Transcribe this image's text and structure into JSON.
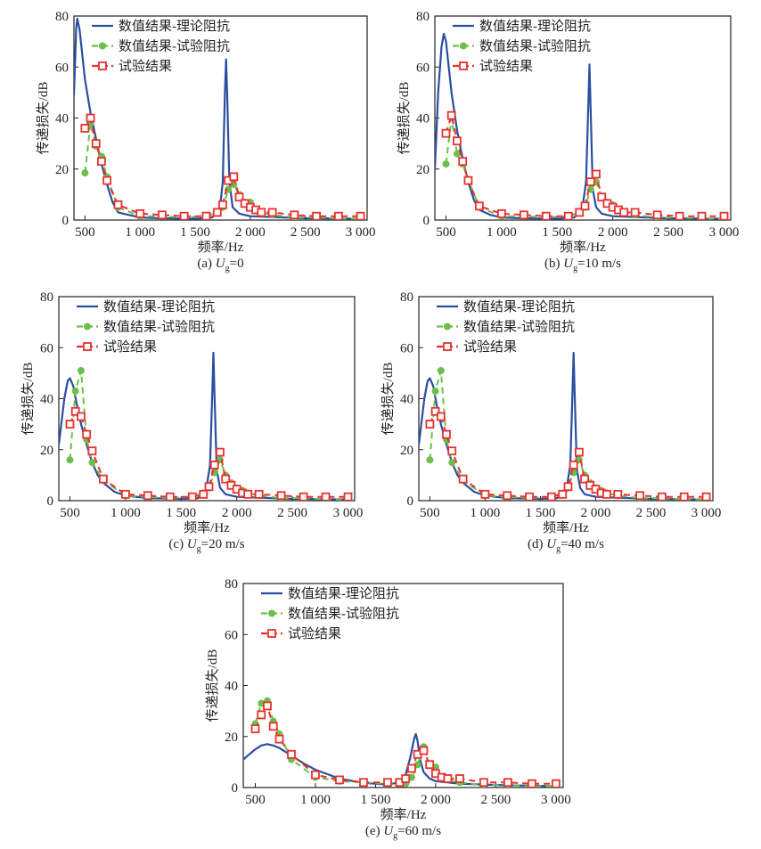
{
  "colors": {
    "theory": "#2a4fa0",
    "numexp": "#6cbf4a",
    "test": "#e8312f",
    "axis": "#231f20"
  },
  "chart_data": [
    {
      "type": "line",
      "id": "a",
      "caption": {
        "prefix": "(a) ",
        "var": "U",
        "sub": "g",
        "suffix": "=0"
      },
      "xlabel": "频率/Hz",
      "ylabel": "传递损失/dB",
      "xlim": [
        400,
        3060
      ],
      "ylim": [
        0,
        80
      ],
      "xticks": [
        500,
        1000,
        1500,
        2000,
        2500,
        3000
      ],
      "xtick_labels": [
        "500",
        "1 000",
        "1 500",
        "2 000",
        "2 500",
        "3 000"
      ],
      "yticks": [
        0,
        20,
        40,
        60,
        80
      ],
      "ytick_labels": [
        "0",
        "20",
        "40",
        "60",
        "80"
      ],
      "legend": [
        "数值结果-理论阻抗",
        "数值结果-试验阻抗",
        "试验结果"
      ],
      "legend_position": "top-left",
      "series": [
        {
          "name": "数值结果-理论阻抗",
          "style": "solid",
          "x": [
            400,
            420,
            430,
            450,
            500,
            550,
            600,
            650,
            700,
            750,
            800,
            900,
            1000,
            1200,
            1500,
            1650,
            1720,
            1750,
            1770,
            1780,
            1790,
            1810,
            1840,
            1900,
            2000,
            2500,
            3000
          ],
          "y": [
            49,
            75,
            79,
            75,
            55,
            42,
            32,
            22,
            14,
            7,
            3,
            2,
            1,
            0.7,
            0.5,
            1,
            3,
            15,
            50,
            63,
            50,
            15,
            5,
            2.5,
            1.5,
            0.7,
            0.5
          ]
        },
        {
          "name": "数值结果-试验阻抗",
          "style": "dashed-circle",
          "x": [
            500,
            550,
            600,
            650,
            700,
            800,
            1000,
            1200,
            1400,
            1600,
            1700,
            1750,
            1800,
            1850,
            1900,
            1950,
            2000,
            2050,
            2100,
            2200,
            2400,
            2600,
            2800,
            3000
          ],
          "y": [
            18.5,
            38,
            29,
            25,
            17,
            5,
            1.5,
            1.5,
            1,
            1.5,
            3,
            5,
            12,
            14,
            10,
            7,
            7,
            4,
            3,
            2,
            1,
            1,
            0.5,
            0.5
          ]
        },
        {
          "name": "试验结果",
          "style": "dashed-square",
          "x": [
            500,
            550,
            600,
            650,
            700,
            800,
            1000,
            1200,
            1400,
            1600,
            1700,
            1750,
            1800,
            1850,
            1900,
            1950,
            2000,
            2050,
            2100,
            2200,
            2400,
            2600,
            2800,
            3000
          ],
          "y": [
            36,
            40,
            30,
            23,
            15.5,
            6,
            2.5,
            2,
            1.5,
            1.5,
            3,
            6,
            15.5,
            17,
            9,
            6.5,
            5,
            4,
            3,
            3,
            2,
            1.5,
            1.5,
            1.5
          ]
        }
      ]
    },
    {
      "type": "line",
      "id": "b",
      "caption": {
        "prefix": "(b) ",
        "var": "U",
        "sub": "g",
        "suffix": "=10 m/s"
      },
      "xlabel": "频率/Hz",
      "ylabel": "传递损失/dB",
      "xlim": [
        400,
        3060
      ],
      "ylim": [
        0,
        80
      ],
      "xticks": [
        500,
        1000,
        1500,
        2000,
        2500,
        3000
      ],
      "xtick_labels": [
        "500",
        "1 000",
        "1 500",
        "2 000",
        "2 500",
        "3 000"
      ],
      "yticks": [
        0,
        20,
        40,
        60,
        80
      ],
      "ytick_labels": [
        "0",
        "20",
        "40",
        "60",
        "80"
      ],
      "legend": [
        "数值结果-理论阻抗",
        "数值结果-试验阻抗",
        "试验结果"
      ],
      "legend_position": "top-left",
      "series": [
        {
          "name": "数值结果-理论阻抗",
          "style": "solid",
          "x": [
            400,
            430,
            460,
            480,
            500,
            550,
            600,
            650,
            700,
            750,
            800,
            900,
            1000,
            1200,
            1500,
            1650,
            1720,
            1760,
            1780,
            1790,
            1800,
            1820,
            1850,
            1900,
            2000,
            2500,
            3000
          ],
          "y": [
            20,
            50,
            68,
            73,
            70,
            50,
            35,
            24,
            15,
            8,
            4,
            2,
            1,
            0.7,
            0.5,
            1,
            3,
            15,
            45,
            61,
            45,
            12,
            5,
            2.5,
            1.5,
            0.7,
            0.5
          ]
        },
        {
          "name": "数值结果-试验阻抗",
          "style": "dashed-circle",
          "x": [
            500,
            550,
            600,
            650,
            700,
            800,
            1000,
            1200,
            1400,
            1600,
            1700,
            1750,
            1800,
            1850,
            1900,
            1950,
            2000,
            2050,
            2100,
            2200,
            2400,
            2600,
            2800,
            3000
          ],
          "y": [
            22,
            40,
            26,
            22,
            16,
            5,
            1.5,
            1.5,
            1,
            1.5,
            3,
            5,
            12,
            15,
            9,
            7,
            6,
            4,
            3,
            2,
            1,
            1,
            0.5,
            0.5
          ]
        },
        {
          "name": "试验结果",
          "style": "dashed-square",
          "x": [
            500,
            550,
            600,
            650,
            700,
            800,
            1000,
            1200,
            1400,
            1600,
            1700,
            1750,
            1800,
            1850,
            1900,
            1950,
            2000,
            2050,
            2100,
            2200,
            2400,
            2600,
            2800,
            3000
          ],
          "y": [
            34,
            41,
            31,
            23,
            15.5,
            5.5,
            2.5,
            2,
            1.5,
            1.5,
            3,
            5.5,
            15,
            18,
            9,
            6.5,
            5,
            4,
            3,
            3,
            2,
            1.5,
            1.5,
            1.5
          ]
        }
      ]
    },
    {
      "type": "line",
      "id": "c",
      "caption": {
        "prefix": "(c) ",
        "var": "U",
        "sub": "g",
        "suffix": "=20 m/s"
      },
      "xlabel": "频率/Hz",
      "ylabel": "传递损失/dB",
      "xlim": [
        400,
        3060
      ],
      "ylim": [
        0,
        80
      ],
      "xticks": [
        500,
        1000,
        1500,
        2000,
        2500,
        3000
      ],
      "xtick_labels": [
        "500",
        "1 000",
        "1 500",
        "2 000",
        "2 500",
        "3 000"
      ],
      "yticks": [
        0,
        20,
        40,
        60,
        80
      ],
      "ytick_labels": [
        "0",
        "20",
        "40",
        "60",
        "80"
      ],
      "legend": [
        "数值结果-理论阻抗",
        "数值结果-试验阻抗",
        "试验结果"
      ],
      "legend_position": "top-left",
      "series": [
        {
          "name": "数值结果-理论阻抗",
          "style": "solid",
          "x": [
            400,
            450,
            480,
            500,
            530,
            560,
            600,
            650,
            700,
            750,
            800,
            900,
            1000,
            1200,
            1500,
            1650,
            1720,
            1760,
            1780,
            1790,
            1800,
            1820,
            1850,
            1900,
            2000,
            2500,
            3000
          ],
          "y": [
            22,
            40,
            47,
            48,
            45,
            38,
            30,
            22,
            15,
            10,
            7,
            3.5,
            2,
            1,
            0.7,
            1,
            3,
            14,
            42,
            58,
            42,
            12,
            5,
            2.5,
            1.5,
            0.7,
            0.5
          ]
        },
        {
          "name": "数值结果-试验阻抗",
          "style": "dashed-circle",
          "x": [
            500,
            550,
            600,
            650,
            700,
            800,
            1000,
            1200,
            1400,
            1600,
            1700,
            1750,
            1800,
            1850,
            1900,
            1950,
            2000,
            2050,
            2100,
            2200,
            2400,
            2600,
            2800,
            3000
          ],
          "y": [
            16,
            43,
            51,
            24,
            15,
            8,
            2,
            1.5,
            1,
            1.5,
            3,
            5,
            11,
            16,
            10,
            7,
            5,
            4,
            3,
            2,
            1,
            1,
            0.5,
            0.5
          ]
        },
        {
          "name": "试验结果",
          "style": "dashed-square",
          "x": [
            500,
            550,
            600,
            650,
            700,
            800,
            1000,
            1200,
            1400,
            1600,
            1700,
            1750,
            1800,
            1850,
            1900,
            1950,
            2000,
            2050,
            2100,
            2200,
            2400,
            2600,
            2800,
            3000
          ],
          "y": [
            30,
            35,
            33,
            26,
            19.5,
            8.5,
            2.5,
            2,
            1.5,
            1.5,
            2.5,
            5.5,
            14,
            19,
            8.5,
            6,
            4.5,
            3,
            2.5,
            2.5,
            2,
            1.5,
            1.5,
            1.5
          ]
        }
      ]
    },
    {
      "type": "line",
      "id": "d",
      "caption": {
        "prefix": "(d) ",
        "var": "U",
        "sub": "g",
        "suffix": "=40 m/s"
      },
      "xlabel": "频率/Hz",
      "ylabel": "传递损失/dB",
      "xlim": [
        400,
        3060
      ],
      "ylim": [
        0,
        80
      ],
      "xticks": [
        500,
        1000,
        1500,
        2000,
        2500,
        3000
      ],
      "xtick_labels": [
        "500",
        "1 000",
        "1 500",
        "2 000",
        "2 500",
        "3 000"
      ],
      "yticks": [
        0,
        20,
        40,
        60,
        80
      ],
      "ytick_labels": [
        "0",
        "20",
        "40",
        "60",
        "80"
      ],
      "legend": [
        "数值结果-理论阻抗",
        "数值结果-试验阻抗",
        "试验结果"
      ],
      "legend_position": "top-left",
      "series": [
        {
          "name": "数值结果-理论阻抗",
          "style": "solid",
          "x": [
            400,
            450,
            480,
            500,
            530,
            560,
            600,
            650,
            700,
            750,
            800,
            900,
            1000,
            1200,
            1500,
            1650,
            1730,
            1770,
            1790,
            1800,
            1810,
            1830,
            1860,
            1900,
            2000,
            2500,
            3000
          ],
          "y": [
            22,
            40,
            47,
            48,
            45,
            38,
            30,
            22,
            15,
            10,
            7,
            3.5,
            2,
            1,
            0.7,
            1,
            3,
            14,
            42,
            58,
            42,
            12,
            5,
            2.5,
            1.5,
            0.7,
            0.5
          ]
        },
        {
          "name": "数值结果-试验阻抗",
          "style": "dashed-circle",
          "x": [
            500,
            550,
            600,
            650,
            700,
            800,
            1000,
            1200,
            1400,
            1600,
            1700,
            1750,
            1800,
            1850,
            1900,
            1950,
            2000,
            2050,
            2100,
            2200,
            2400,
            2600,
            2800,
            3000
          ],
          "y": [
            16,
            43,
            51,
            24,
            15,
            8,
            2,
            1.5,
            1,
            1.5,
            3,
            5,
            11,
            16,
            10,
            7,
            5,
            4,
            3,
            2,
            1,
            1,
            0.5,
            0.5
          ]
        },
        {
          "name": "试验结果",
          "style": "dashed-square",
          "x": [
            500,
            550,
            600,
            650,
            700,
            800,
            1000,
            1200,
            1400,
            1600,
            1700,
            1750,
            1800,
            1850,
            1900,
            1950,
            2000,
            2050,
            2100,
            2200,
            2400,
            2600,
            2800,
            3000
          ],
          "y": [
            30,
            35,
            33,
            26,
            19.5,
            8.5,
            2.5,
            2,
            1.5,
            1.5,
            2.5,
            5.5,
            14,
            19,
            8.5,
            6,
            4.5,
            3,
            2.5,
            2.5,
            2,
            1.5,
            1.5,
            1.5
          ]
        }
      ]
    },
    {
      "type": "line",
      "id": "e",
      "caption": {
        "prefix": "(e) ",
        "var": "U",
        "sub": "g",
        "suffix": "=60 m/s"
      },
      "xlabel": "频率/Hz",
      "ylabel": "传递损失/dB",
      "xlim": [
        400,
        3060
      ],
      "ylim": [
        0,
        80
      ],
      "xticks": [
        500,
        1000,
        1500,
        2000,
        2500,
        3000
      ],
      "xtick_labels": [
        "500",
        "1 000",
        "1 500",
        "2 000",
        "2 500",
        "3 000"
      ],
      "yticks": [
        0,
        20,
        40,
        60,
        80
      ],
      "ytick_labels": [
        "0",
        "20",
        "40",
        "60",
        "80"
      ],
      "legend": [
        "数值结果-理论阻抗",
        "数值结果-试验阻抗",
        "试验结果"
      ],
      "legend_position": "top-left",
      "series": [
        {
          "name": "数值结果-理论阻抗",
          "style": "solid",
          "x": [
            400,
            450,
            500,
            550,
            600,
            650,
            700,
            800,
            900,
            1000,
            1200,
            1400,
            1600,
            1700,
            1750,
            1790,
            1820,
            1835,
            1850,
            1870,
            1900,
            1950,
            2000,
            2200,
            2500,
            3000
          ],
          "y": [
            11,
            13,
            15,
            16.5,
            17,
            16.5,
            15.5,
            12.5,
            9.5,
            7,
            3.5,
            1.8,
            1.2,
            2,
            5,
            12,
            19,
            21,
            18,
            11,
            6,
            3.5,
            2.5,
            1.5,
            1,
            0.5
          ]
        },
        {
          "name": "数值结果-试验阻抗",
          "style": "dashed-circle",
          "x": [
            500,
            550,
            600,
            650,
            700,
            800,
            1000,
            1200,
            1400,
            1600,
            1700,
            1750,
            1800,
            1850,
            1900,
            1950,
            2000,
            2050,
            2100,
            2200,
            2400,
            2600,
            2800,
            3000
          ],
          "y": [
            25,
            33,
            34,
            26,
            21,
            11,
            4,
            2.5,
            2,
            1.5,
            1.5,
            1.5,
            4,
            9,
            16,
            9,
            8,
            4,
            3,
            2,
            1,
            1,
            0.5,
            0.5
          ]
        },
        {
          "name": "试验结果",
          "style": "dashed-square",
          "x": [
            500,
            550,
            600,
            650,
            700,
            800,
            1000,
            1200,
            1400,
            1600,
            1700,
            1750,
            1800,
            1850,
            1900,
            1950,
            2000,
            2050,
            2100,
            2200,
            2400,
            2600,
            2800,
            3000
          ],
          "y": [
            23,
            28.5,
            32,
            24,
            19,
            13,
            5,
            3,
            2,
            2,
            2,
            3.5,
            7.5,
            13,
            14.5,
            9,
            5.5,
            4,
            3.5,
            3.5,
            2,
            2,
            1.5,
            1.5
          ]
        }
      ]
    }
  ]
}
